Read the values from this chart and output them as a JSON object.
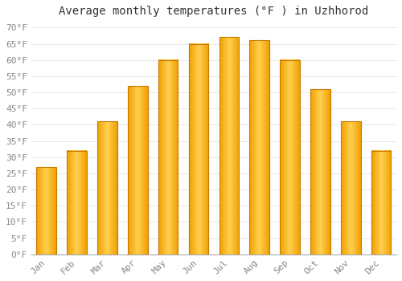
{
  "title": "Average monthly temperatures (°F ) in Uzhhorod",
  "months": [
    "Jan",
    "Feb",
    "Mar",
    "Apr",
    "May",
    "Jun",
    "Jul",
    "Aug",
    "Sep",
    "Oct",
    "Nov",
    "Dec"
  ],
  "values": [
    27,
    32,
    41,
    52,
    60,
    65,
    67,
    66,
    60,
    51,
    41,
    32
  ],
  "bar_color_center": "#FFD050",
  "bar_color_edge": "#F0A000",
  "bar_border_color": "#C87800",
  "background_color": "#FFFFFF",
  "grid_color": "#DDDDDD",
  "yticks": [
    0,
    5,
    10,
    15,
    20,
    25,
    30,
    35,
    40,
    45,
    50,
    55,
    60,
    65,
    70
  ],
  "ylim": [
    0,
    72
  ],
  "title_fontsize": 10,
  "tick_fontsize": 8,
  "font_family": "monospace",
  "tick_color": "#888888"
}
